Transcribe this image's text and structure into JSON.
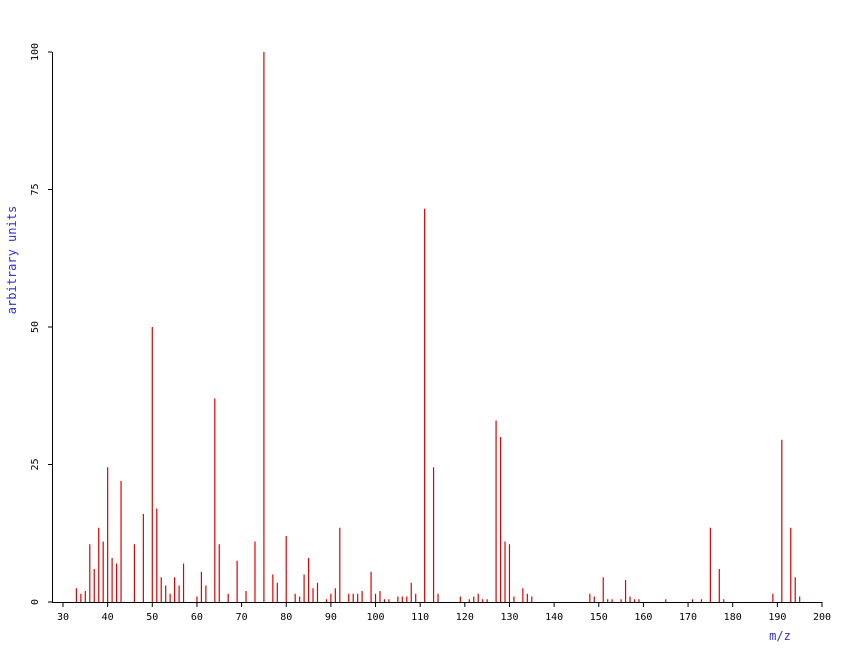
{
  "chart_data": {
    "type": "stem",
    "x_label": "m/z",
    "y_label": "arbitrary units",
    "color": "#e00000",
    "x": [
      33,
      34,
      35,
      36,
      37,
      38,
      39,
      40,
      41,
      42,
      43,
      46,
      48,
      50,
      51,
      52,
      53,
      54,
      55,
      56,
      57,
      60,
      61,
      62,
      64,
      65,
      67,
      69,
      71,
      73,
      75,
      77,
      78,
      80,
      82,
      83,
      84,
      85,
      86,
      87,
      89,
      90,
      91,
      92,
      94,
      95,
      96,
      97,
      99,
      100,
      101,
      102,
      103,
      105,
      106,
      107,
      108,
      109,
      111,
      113,
      114,
      119,
      121,
      122,
      123,
      124,
      125,
      127,
      128,
      129,
      130,
      131,
      133,
      134,
      135,
      148,
      149,
      151,
      152,
      153,
      155,
      156,
      157,
      158,
      159,
      165,
      171,
      173,
      175,
      177,
      178,
      189,
      191,
      193,
      194,
      195
    ],
    "values": [
      2.5,
      1.5,
      2,
      10.5,
      6,
      13.5,
      11,
      24.5,
      8,
      7,
      22,
      10.5,
      16,
      50,
      17,
      4.5,
      3,
      1.5,
      4.5,
      3,
      7,
      1,
      5.5,
      3,
      37,
      10.5,
      1.5,
      7.5,
      2,
      11,
      100,
      5,
      3.5,
      12,
      1.5,
      1,
      5,
      8,
      2.5,
      3.5,
      0.5,
      1.5,
      2.5,
      13.5,
      1.5,
      1.5,
      1.5,
      2,
      5.5,
      1.5,
      2,
      0.5,
      0.5,
      1,
      1,
      1,
      3.5,
      1.5,
      71.5,
      24.5,
      1.5,
      1,
      0.5,
      1,
      1.5,
      0.5,
      0.5,
      33,
      30,
      11,
      10.5,
      1,
      2.5,
      1.5,
      1,
      1.5,
      1,
      4.5,
      0.5,
      0.5,
      0.5,
      4,
      1,
      0.5,
      0.5,
      0.5,
      0.5,
      0.5,
      13.5,
      6,
      0.5,
      1.5,
      29.5,
      13.5,
      4.5,
      1
    ],
    "xlim": [
      30,
      200
    ],
    "xticks": [
      30,
      40,
      50,
      60,
      70,
      80,
      90,
      100,
      110,
      120,
      130,
      140,
      150,
      160,
      170,
      180,
      190,
      200
    ],
    "ylim": [
      0,
      100
    ],
    "yticks": [
      0,
      25,
      50,
      75,
      100
    ]
  }
}
